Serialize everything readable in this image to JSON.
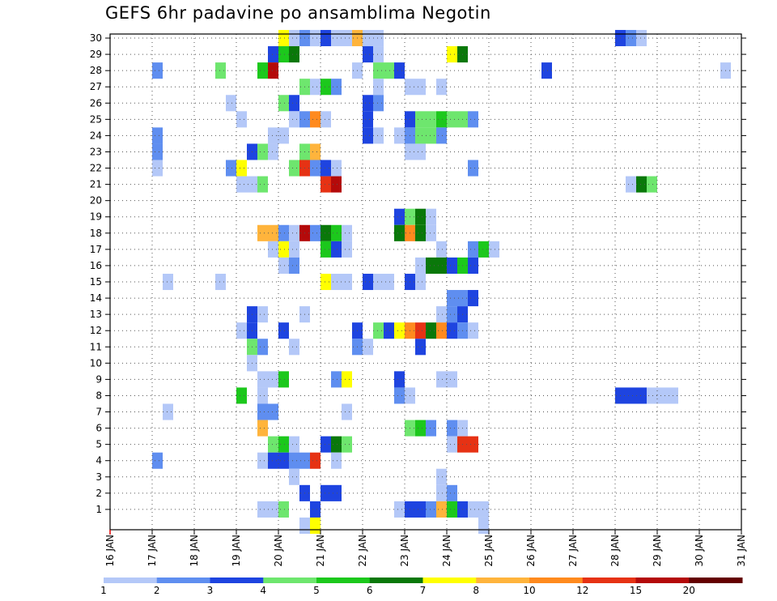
{
  "chart_data": {
    "type": "heatmap",
    "title": "GEFS 6hr padavine po ansamblima Negotin",
    "xlabel": "",
    "ylabel": "",
    "x_ticks": [
      "16 JAN",
      "17 JAN",
      "18 JAN",
      "19 JAN",
      "20 JAN",
      "21 JAN",
      "22 JAN",
      "23 JAN",
      "24 JAN",
      "25 JAN",
      "26 JAN",
      "27 JAN",
      "28 JAN",
      "29 JAN",
      "30 JAN",
      "31 JAN"
    ],
    "y_ticks": [
      1,
      2,
      3,
      4,
      5,
      6,
      7,
      8,
      9,
      10,
      11,
      12,
      13,
      14,
      15,
      16,
      17,
      18,
      19,
      20,
      21,
      22,
      23,
      24,
      25,
      26,
      27,
      28,
      29,
      30
    ],
    "xlim_days": [
      16,
      31
    ],
    "ylim": [
      0,
      30
    ],
    "grid": true,
    "colorbar": {
      "labels": [
        "1",
        "2",
        "3",
        "4",
        "5",
        "6",
        "7",
        "8",
        "10",
        "12",
        "15",
        "20"
      ],
      "colors": [
        "#b4c8f8",
        "#5f8ef0",
        "#1e44e0",
        "#6ee66e",
        "#1cc81c",
        "#0a780a",
        "#ffff00",
        "#ffb43c",
        "#ff8a1e",
        "#e63214",
        "#b40a0a",
        "#640000"
      ]
    },
    "cells": [
      [
        30,
        20.0,
        2,
        6
      ],
      [
        30,
        20.25,
        2,
        0
      ],
      [
        30,
        20.5,
        2,
        1
      ],
      [
        30,
        20.75,
        1,
        0
      ],
      [
        30,
        21.0,
        1,
        2
      ],
      [
        30,
        21.25,
        2,
        0
      ],
      [
        30,
        21.75,
        1,
        7
      ],
      [
        30,
        22.0,
        2,
        0
      ],
      [
        30,
        28.0,
        1,
        2
      ],
      [
        30,
        28.25,
        1,
        1
      ],
      [
        30,
        28.5,
        1,
        0
      ],
      [
        29,
        19.75,
        1,
        2
      ],
      [
        29,
        20.0,
        1,
        4
      ],
      [
        29,
        20.25,
        1,
        5
      ],
      [
        29,
        22.0,
        1,
        2
      ],
      [
        29,
        22.25,
        1,
        0
      ],
      [
        29,
        24.0,
        1,
        6
      ],
      [
        29,
        24.25,
        1,
        5
      ],
      [
        28,
        17.0,
        1,
        1
      ],
      [
        28,
        18.5,
        1,
        3
      ],
      [
        28,
        19.5,
        1,
        4
      ],
      [
        28,
        19.75,
        1,
        10
      ],
      [
        28,
        21.75,
        1,
        0
      ],
      [
        28,
        22.25,
        2,
        3
      ],
      [
        28,
        22.75,
        1,
        2
      ],
      [
        28,
        26.25,
        1,
        2
      ],
      [
        28,
        30.5,
        1,
        0
      ],
      [
        27,
        20.5,
        1,
        3
      ],
      [
        27,
        20.75,
        1,
        0
      ],
      [
        27,
        21.0,
        1,
        4
      ],
      [
        27,
        21.25,
        1,
        1
      ],
      [
        27,
        22.25,
        1,
        0
      ],
      [
        27,
        23.0,
        2,
        0
      ],
      [
        27,
        23.75,
        1,
        0
      ],
      [
        26,
        18.75,
        1,
        0
      ],
      [
        26,
        20.0,
        1,
        3
      ],
      [
        26,
        20.25,
        1,
        2
      ],
      [
        26,
        22.0,
        1,
        2
      ],
      [
        26,
        22.25,
        1,
        1
      ],
      [
        25,
        19.0,
        1,
        0
      ],
      [
        25,
        20.25,
        1,
        0
      ],
      [
        25,
        20.5,
        1,
        1
      ],
      [
        25,
        20.75,
        1,
        8
      ],
      [
        25,
        21.0,
        1,
        0
      ],
      [
        25,
        22.0,
        1,
        2
      ],
      [
        25,
        23.0,
        1,
        2
      ],
      [
        25,
        23.25,
        2,
        3
      ],
      [
        25,
        23.75,
        1,
        4
      ],
      [
        25,
        24.0,
        2,
        3
      ],
      [
        25,
        24.5,
        1,
        1
      ],
      [
        24,
        17.0,
        1,
        1
      ],
      [
        24,
        19.75,
        2,
        0
      ],
      [
        24,
        22.0,
        1,
        2
      ],
      [
        24,
        22.25,
        1,
        0
      ],
      [
        24,
        22.75,
        1,
        0
      ],
      [
        24,
        23.0,
        1,
        1
      ],
      [
        24,
        23.25,
        2,
        3
      ],
      [
        24,
        23.75,
        1,
        1
      ],
      [
        23,
        17.0,
        1,
        1
      ],
      [
        23,
        19.25,
        1,
        2
      ],
      [
        23,
        19.5,
        1,
        3
      ],
      [
        23,
        19.75,
        1,
        0
      ],
      [
        23,
        20.5,
        1,
        3
      ],
      [
        23,
        20.75,
        1,
        7
      ],
      [
        23,
        23.0,
        2,
        0
      ],
      [
        22,
        17.0,
        1,
        0
      ],
      [
        22,
        18.75,
        1,
        1
      ],
      [
        22,
        19.0,
        1,
        6
      ],
      [
        22,
        20.25,
        1,
        3
      ],
      [
        22,
        20.5,
        1,
        9
      ],
      [
        22,
        20.75,
        1,
        1
      ],
      [
        22,
        21.0,
        1,
        2
      ],
      [
        22,
        21.25,
        1,
        0
      ],
      [
        22,
        24.5,
        1,
        1
      ],
      [
        21,
        19.0,
        2,
        0
      ],
      [
        21,
        19.5,
        1,
        3
      ],
      [
        21,
        21.0,
        1,
        9
      ],
      [
        21,
        21.25,
        1,
        10
      ],
      [
        21,
        28.25,
        1,
        0
      ],
      [
        21,
        28.5,
        1,
        5
      ],
      [
        21,
        28.75,
        1,
        3
      ],
      [
        19,
        22.75,
        1,
        2
      ],
      [
        19,
        23.0,
        1,
        3
      ],
      [
        19,
        23.25,
        1,
        5
      ],
      [
        19,
        23.5,
        1,
        0
      ],
      [
        18,
        19.5,
        2,
        7
      ],
      [
        18,
        20.0,
        1,
        1
      ],
      [
        18,
        20.25,
        1,
        0
      ],
      [
        18,
        20.5,
        1,
        10
      ],
      [
        18,
        20.75,
        1,
        1
      ],
      [
        18,
        21.0,
        1,
        5
      ],
      [
        18,
        21.25,
        1,
        4
      ],
      [
        18,
        21.5,
        1,
        0
      ],
      [
        18,
        22.75,
        1,
        5
      ],
      [
        18,
        23.0,
        1,
        8
      ],
      [
        18,
        23.25,
        1,
        5
      ],
      [
        18,
        23.5,
        1,
        0
      ],
      [
        17,
        19.75,
        1,
        0
      ],
      [
        17,
        20.0,
        1,
        6
      ],
      [
        17,
        20.25,
        1,
        0
      ],
      [
        17,
        21.0,
        1,
        4
      ],
      [
        17,
        21.25,
        1,
        2
      ],
      [
        17,
        21.5,
        1,
        0
      ],
      [
        17,
        23.75,
        1,
        0
      ],
      [
        17,
        24.5,
        1,
        1
      ],
      [
        17,
        24.75,
        1,
        4
      ],
      [
        17,
        25.0,
        1,
        0
      ],
      [
        16,
        20.0,
        1,
        0
      ],
      [
        16,
        20.25,
        1,
        1
      ],
      [
        16,
        23.25,
        1,
        0
      ],
      [
        16,
        23.5,
        2,
        5
      ],
      [
        16,
        24.0,
        1,
        2
      ],
      [
        16,
        24.25,
        1,
        4
      ],
      [
        16,
        24.5,
        1,
        2
      ],
      [
        15,
        17.25,
        1,
        0
      ],
      [
        15,
        18.5,
        1,
        0
      ],
      [
        15,
        21.0,
        1,
        6
      ],
      [
        15,
        21.25,
        2,
        0
      ],
      [
        15,
        22.0,
        1,
        2
      ],
      [
        15,
        22.25,
        2,
        0
      ],
      [
        15,
        23.0,
        1,
        2
      ],
      [
        15,
        23.25,
        1,
        0
      ],
      [
        14,
        24.0,
        1,
        1
      ],
      [
        14,
        24.25,
        1,
        1
      ],
      [
        14,
        24.5,
        1,
        2
      ],
      [
        13,
        19.25,
        1,
        2
      ],
      [
        13,
        19.5,
        1,
        0
      ],
      [
        13,
        20.5,
        1,
        0
      ],
      [
        13,
        23.75,
        1,
        0
      ],
      [
        13,
        24.0,
        1,
        1
      ],
      [
        13,
        24.25,
        1,
        2
      ],
      [
        12,
        19.0,
        1,
        0
      ],
      [
        12,
        19.25,
        1,
        2
      ],
      [
        12,
        20.0,
        1,
        2
      ],
      [
        12,
        21.75,
        1,
        2
      ],
      [
        12,
        22.25,
        1,
        3
      ],
      [
        12,
        22.5,
        1,
        2
      ],
      [
        12,
        22.75,
        1,
        6
      ],
      [
        12,
        23.0,
        1,
        8
      ],
      [
        12,
        23.25,
        1,
        9
      ],
      [
        12,
        23.5,
        1,
        5
      ],
      [
        12,
        23.75,
        1,
        8
      ],
      [
        12,
        24.0,
        1,
        2
      ],
      [
        12,
        24.25,
        1,
        1
      ],
      [
        12,
        24.5,
        1,
        0
      ],
      [
        11,
        19.25,
        1,
        3
      ],
      [
        11,
        19.5,
        1,
        1
      ],
      [
        11,
        20.25,
        1,
        0
      ],
      [
        11,
        21.75,
        1,
        1
      ],
      [
        11,
        22.0,
        1,
        0
      ],
      [
        11,
        23.25,
        1,
        2
      ],
      [
        10,
        19.25,
        1,
        0
      ],
      [
        9,
        19.5,
        2,
        0
      ],
      [
        9,
        20.0,
        1,
        4
      ],
      [
        9,
        21.25,
        1,
        1
      ],
      [
        9,
        21.5,
        1,
        6
      ],
      [
        9,
        22.75,
        1,
        2
      ],
      [
        9,
        23.75,
        2,
        0
      ],
      [
        8,
        19.0,
        1,
        4
      ],
      [
        8,
        19.5,
        1,
        0
      ],
      [
        8,
        22.75,
        1,
        1
      ],
      [
        8,
        23.0,
        1,
        0
      ],
      [
        8,
        28.0,
        3,
        2
      ],
      [
        8,
        28.75,
        3,
        0
      ],
      [
        7,
        17.25,
        1,
        0
      ],
      [
        7,
        19.5,
        2,
        1
      ],
      [
        7,
        21.5,
        1,
        0
      ],
      [
        6,
        19.5,
        1,
        7
      ],
      [
        6,
        23.0,
        1,
        3
      ],
      [
        6,
        23.25,
        1,
        4
      ],
      [
        6,
        23.5,
        1,
        1
      ],
      [
        6,
        24.0,
        1,
        1
      ],
      [
        6,
        24.25,
        1,
        0
      ],
      [
        5,
        19.75,
        1,
        3
      ],
      [
        5,
        20.0,
        1,
        4
      ],
      [
        5,
        20.25,
        1,
        0
      ],
      [
        5,
        21.0,
        1,
        2
      ],
      [
        5,
        21.25,
        1,
        5
      ],
      [
        5,
        21.5,
        1,
        3
      ],
      [
        5,
        24.0,
        1,
        0
      ],
      [
        5,
        24.25,
        2,
        9
      ],
      [
        4,
        17.0,
        1,
        1
      ],
      [
        4,
        19.5,
        1,
        0
      ],
      [
        4,
        19.75,
        2,
        2
      ],
      [
        4,
        20.25,
        2,
        1
      ],
      [
        4,
        20.75,
        1,
        9
      ],
      [
        4,
        21.25,
        1,
        0
      ],
      [
        3,
        20.25,
        1,
        0
      ],
      [
        3,
        23.75,
        1,
        0
      ],
      [
        2,
        20.5,
        1,
        2
      ],
      [
        2,
        21.0,
        2,
        2
      ],
      [
        2,
        23.75,
        1,
        0
      ],
      [
        2,
        24.0,
        1,
        1
      ],
      [
        1,
        19.5,
        2,
        0
      ],
      [
        1,
        20.0,
        1,
        3
      ],
      [
        1,
        20.75,
        1,
        2
      ],
      [
        1,
        22.75,
        1,
        0
      ],
      [
        1,
        23.0,
        2,
        2
      ],
      [
        1,
        23.5,
        1,
        1
      ],
      [
        1,
        23.75,
        1,
        7
      ],
      [
        1,
        24.0,
        1,
        4
      ],
      [
        1,
        24.25,
        1,
        2
      ],
      [
        1,
        24.5,
        2,
        0
      ],
      [
        0,
        20.5,
        1,
        0
      ],
      [
        0,
        20.75,
        1,
        6
      ],
      [
        0,
        24.75,
        1,
        0
      ]
    ]
  }
}
